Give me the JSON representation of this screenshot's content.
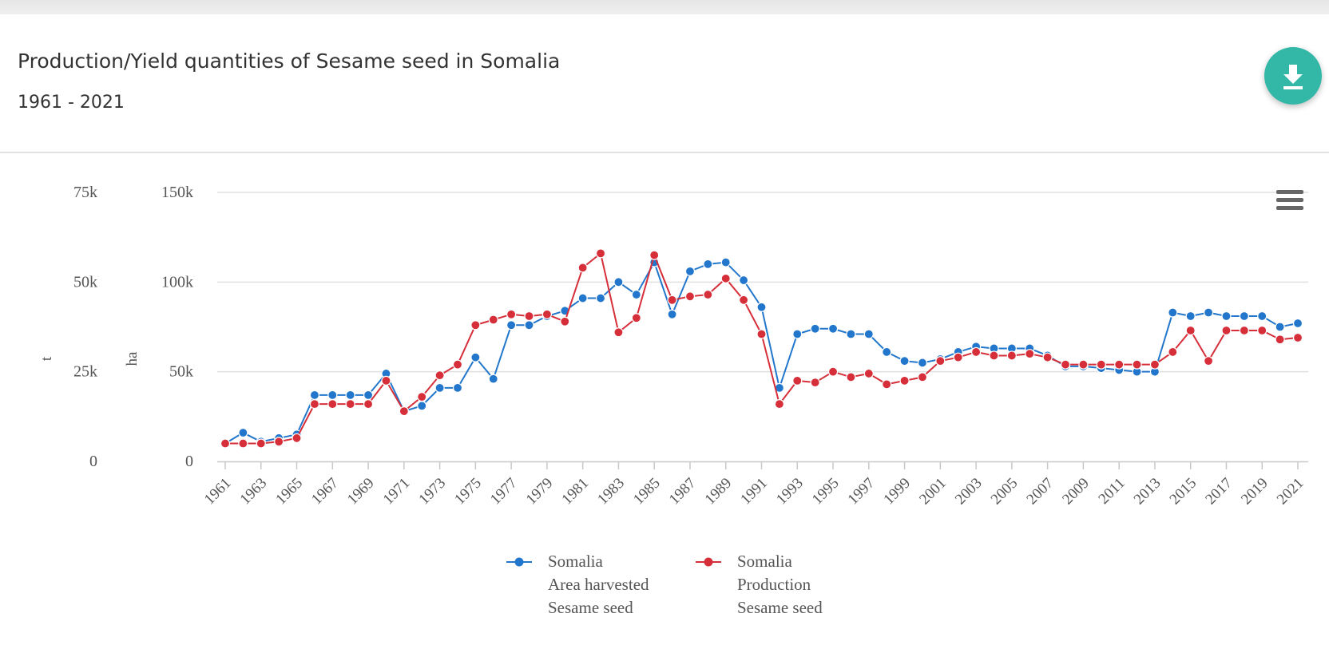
{
  "page": {
    "title": "Production/Yield quantities of Sesame seed in Somalia",
    "subtitle": "1961 - 2021"
  },
  "colors": {
    "accent": "#33b8a8",
    "area_series": "#2277cc",
    "production_series": "#d62f3a",
    "grid": "#e0e0e0",
    "text": "#333333"
  },
  "icons": {
    "download": "download-icon",
    "menu": "hamburger-menu-icon"
  },
  "chart_data": {
    "type": "line",
    "title": "",
    "x": [
      1961,
      1962,
      1963,
      1964,
      1965,
      1966,
      1967,
      1968,
      1969,
      1970,
      1971,
      1972,
      1973,
      1974,
      1975,
      1976,
      1977,
      1978,
      1979,
      1980,
      1981,
      1982,
      1983,
      1984,
      1985,
      1986,
      1987,
      1988,
      1989,
      1990,
      1991,
      1992,
      1993,
      1994,
      1995,
      1996,
      1997,
      1998,
      1999,
      2000,
      2001,
      2002,
      2003,
      2004,
      2005,
      2006,
      2007,
      2008,
      2009,
      2010,
      2011,
      2012,
      2013,
      2014,
      2015,
      2016,
      2017,
      2018,
      2019,
      2020,
      2021
    ],
    "x_tick_labels": [
      "1961",
      "1963",
      "1965",
      "1967",
      "1969",
      "1971",
      "1973",
      "1975",
      "1977",
      "1979",
      "1981",
      "1983",
      "1985",
      "1987",
      "1989",
      "1991",
      "1993",
      "1995",
      "1997",
      "1999",
      "2001",
      "2003",
      "2005",
      "2007",
      "2009",
      "2011",
      "2013",
      "2015",
      "2017",
      "2019",
      "2021"
    ],
    "y_axes": [
      {
        "id": "t",
        "label": "t",
        "range": [
          0,
          75000
        ],
        "ticks": [
          "0",
          "25k",
          "50k",
          "75k"
        ]
      },
      {
        "id": "ha",
        "label": "ha",
        "range": [
          0,
          150000
        ],
        "ticks": [
          "0",
          "50k",
          "100k",
          "150k"
        ]
      }
    ],
    "grid": true,
    "legend_position": "bottom-center",
    "series": [
      {
        "name": "Somalia\nArea harvested\nSesame seed",
        "legend_lines": [
          "Somalia",
          "Area harvested",
          "Sesame seed"
        ],
        "axis": "ha",
        "color": "#2277cc",
        "values": [
          10000,
          16000,
          11000,
          13000,
          15000,
          37000,
          37000,
          37000,
          37000,
          49000,
          28000,
          31000,
          41000,
          41000,
          58000,
          46000,
          76000,
          76000,
          81000,
          84000,
          91000,
          91000,
          100000,
          93000,
          111000,
          82000,
          106000,
          110000,
          111000,
          101000,
          86000,
          41000,
          71000,
          74000,
          74000,
          71000,
          71000,
          61000,
          56000,
          55000,
          57000,
          61000,
          64000,
          63000,
          63000,
          63000,
          59000,
          53000,
          53000,
          52000,
          51000,
          50000,
          50000,
          83000,
          81000,
          83000,
          81000,
          81000,
          81000,
          75000,
          77000
        ]
      },
      {
        "name": "Somalia\nProduction\nSesame seed",
        "legend_lines": [
          "Somalia",
          "Production",
          "Sesame seed"
        ],
        "axis": "t",
        "color": "#d62f3a",
        "values": [
          5000,
          5000,
          5000,
          5500,
          6500,
          16000,
          16000,
          16000,
          16000,
          22500,
          14000,
          18000,
          24000,
          27000,
          38000,
          39500,
          41000,
          40500,
          41000,
          39000,
          54000,
          58000,
          36000,
          40000,
          57500,
          45000,
          46000,
          46500,
          51000,
          45000,
          35500,
          16000,
          22500,
          22000,
          25000,
          23500,
          24500,
          21500,
          22500,
          23500,
          28000,
          29000,
          30500,
          29500,
          29500,
          30000,
          29000,
          27000,
          27000,
          27000,
          27000,
          27000,
          27000,
          30500,
          36500,
          28000,
          36500,
          36500,
          36500,
          34000,
          34500
        ]
      }
    ]
  }
}
